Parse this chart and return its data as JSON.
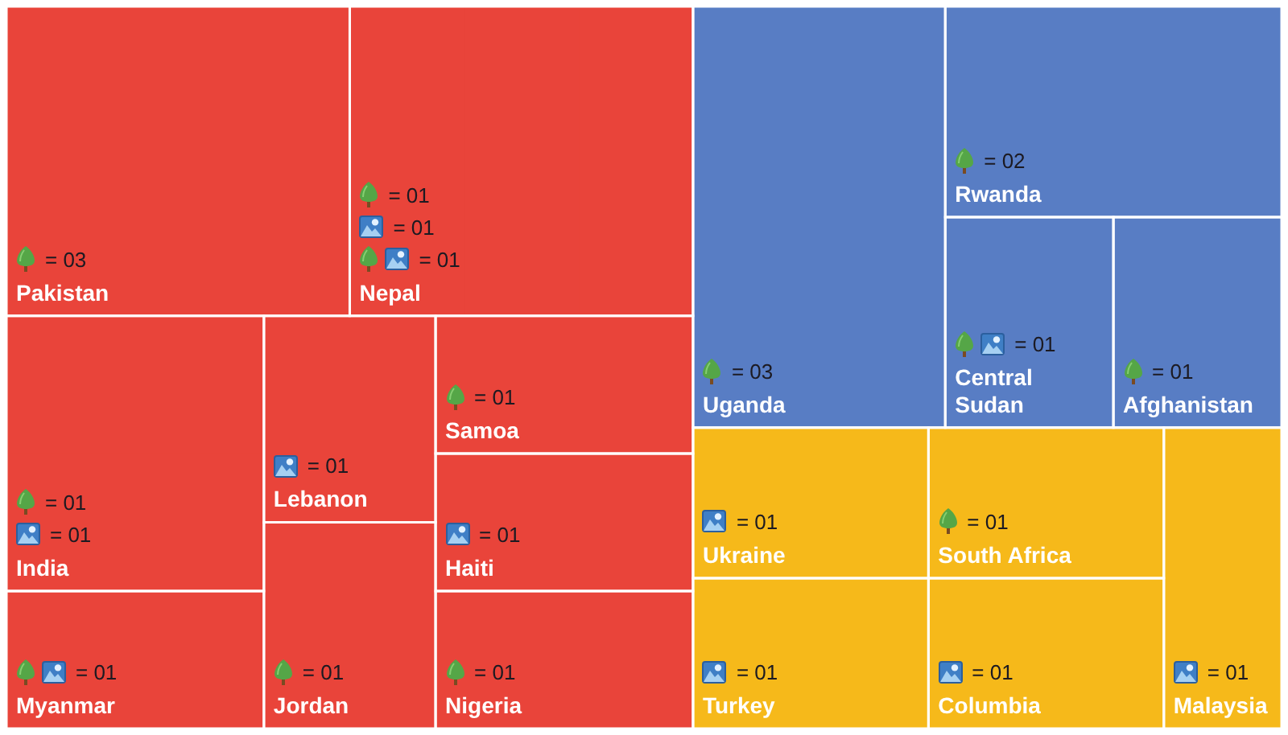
{
  "chart_data": {
    "type": "other",
    "categories": [
      "Pakistan",
      "Nepal",
      "India",
      "Myanmar",
      "Lebanon",
      "Jordan",
      "Samoa",
      "Haiti",
      "Nigeria",
      "Uganda",
      "Rwanda",
      "Central Sudan",
      "Afghanistan",
      "Ukraine",
      "Turkey",
      "South Africa",
      "Columbia",
      "Malaysia"
    ],
    "series": [
      {
        "values": [
          3,
          1,
          1,
          null,
          null,
          1,
          1,
          null,
          1,
          3,
          2,
          null,
          1,
          null,
          null,
          1,
          null,
          null
        ],
        "value_labels": [
          "= 03",
          "= 01",
          "= 01",
          null,
          null,
          "= 01",
          "= 01",
          null,
          "= 01",
          "= 03",
          "= 02",
          null,
          "= 01",
          null,
          null,
          "= 01",
          null,
          null
        ],
        "colors": [
          "#e9443a",
          "#e9443a",
          "#e9443a",
          null,
          null,
          "#e9443a",
          "#e9443a",
          null,
          "#e9443a",
          "#587dc4",
          "#587dc4",
          null,
          "#587dc4",
          null,
          null,
          "#f6b91a",
          null,
          null
        ]
      },
      {
        "values": [
          null,
          1,
          1,
          null,
          1,
          null,
          null,
          1,
          null,
          null,
          null,
          null,
          null,
          1,
          1,
          null,
          1,
          1
        ],
        "value_labels": [
          null,
          "= 01",
          "= 01",
          null,
          "= 01",
          null,
          null,
          "= 01",
          null,
          null,
          null,
          null,
          null,
          "= 01",
          "= 01",
          null,
          "= 01",
          "= 01"
        ],
        "colors": [
          null,
          "#e9443a",
          "#e9443a",
          null,
          "#e9443a",
          null,
          null,
          "#e9443a",
          null,
          null,
          null,
          null,
          null,
          "#f6b91a",
          "#f6b91a",
          null,
          "#f6b91a",
          "#f6b91a"
        ]
      },
      {
        "values": [
          null,
          1,
          null,
          1,
          null,
          null,
          null,
          null,
          null,
          null,
          null,
          1,
          null,
          null,
          null,
          null,
          null,
          null
        ],
        "value_labels": [
          null,
          "= 01",
          null,
          "= 01",
          null,
          null,
          null,
          null,
          null,
          null,
          null,
          "= 01",
          null,
          null,
          null,
          null,
          null,
          null
        ],
        "colors": [
          null,
          "#e9443a",
          null,
          "#e9443a",
          null,
          null,
          null,
          null,
          null,
          null,
          null,
          "#587dc4",
          null,
          null,
          null,
          null,
          null,
          null
        ]
      }
    ]
  }
}
